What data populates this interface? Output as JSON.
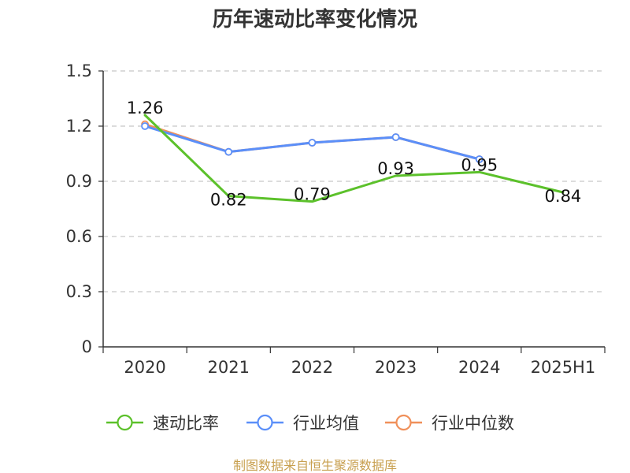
{
  "chart_data": {
    "type": "line",
    "title": "历年速动比率变化情况",
    "categories": [
      "2020",
      "2021",
      "2022",
      "2023",
      "2024",
      "2025H1"
    ],
    "ylim": [
      0,
      1.5
    ],
    "yticks": [
      "0",
      "0.3",
      "0.6",
      "0.9",
      "1.2",
      "1.5"
    ],
    "ytick_values": [
      0,
      0.3,
      0.6,
      0.9,
      1.2,
      1.5
    ],
    "grid": "horizontal dashed",
    "legend_position": "bottom",
    "series": [
      {
        "name": "速动比率",
        "color": "#5cc12b",
        "values": [
          1.26,
          0.82,
          0.79,
          0.93,
          0.95,
          0.84
        ],
        "labels": [
          "1.26",
          "0.82",
          "0.79",
          "0.93",
          "0.95",
          "0.84"
        ],
        "show_labels": true,
        "show_markers": false
      },
      {
        "name": "行业均值",
        "color": "#5b8ff9",
        "values": [
          1.2,
          1.06,
          1.11,
          1.14,
          1.02,
          null
        ],
        "show_labels": false,
        "show_markers": true
      },
      {
        "name": "行业中位数",
        "color": "#f0905a",
        "values": [
          1.21,
          1.06,
          1.11,
          1.14,
          1.02,
          null
        ],
        "show_labels": false,
        "show_markers": true
      }
    ]
  },
  "source_text": "制图数据来自恒生聚源数据库"
}
